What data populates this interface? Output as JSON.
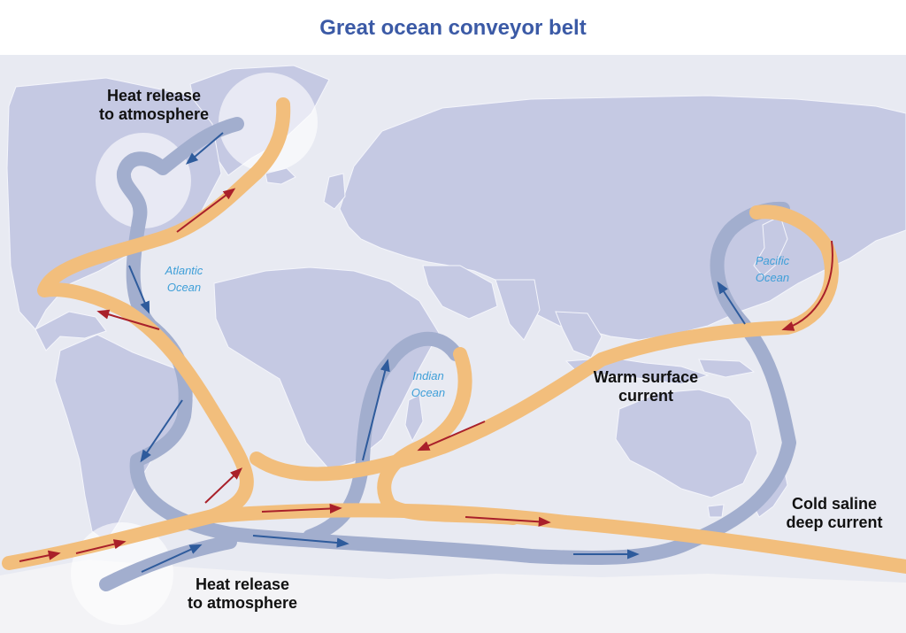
{
  "title": "Great ocean conveyor belt",
  "labels": {
    "heat_release_top": [
      "Heat release",
      "to atmosphere"
    ],
    "heat_release_bottom": [
      "Heat release",
      "to atmosphere"
    ],
    "warm_surface": [
      "Warm surface",
      "current"
    ],
    "cold_deep": [
      "Cold saline",
      "deep current"
    ]
  },
  "oceans": {
    "atlantic": [
      "Atlantic",
      "Ocean"
    ],
    "indian": [
      "Indian",
      "Ocean"
    ],
    "pacific": [
      "Pacific",
      "Ocean"
    ]
  },
  "colors": {
    "background": "#e8eaf2",
    "land": "#c5c9e3",
    "antarctica": "#f3f3f6",
    "warm_current": "#f2be7c",
    "warm_arrow": "#a9202a",
    "cold_current": "#a2aece",
    "cold_arrow": "#2e5b9c",
    "title": "#3b5aa6",
    "ocean_label": "#3f9fd8"
  }
}
